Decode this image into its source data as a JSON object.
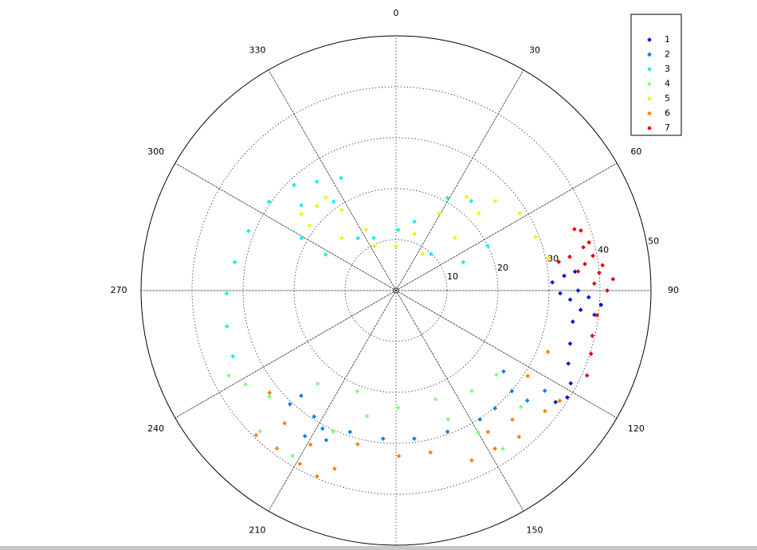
{
  "chart_data": {
    "type": "polar-scatter",
    "theta_zero": "top",
    "theta_direction": "clockwise",
    "rlim": [
      0,
      50
    ],
    "rticks": [
      10,
      20,
      30,
      40,
      50
    ],
    "thetaticks": [
      0,
      30,
      60,
      90,
      120,
      150,
      210,
      240,
      270,
      300,
      330
    ],
    "grid": true,
    "legend": "upper right",
    "series": [
      {
        "name": "1",
        "color": "#0010e0",
        "theta": [
          87,
          85,
          84,
          90,
          92,
          94,
          97,
          96,
          93,
          100,
          107,
          113,
          118,
          122,
          125,
          91
        ],
        "r": [
          30.7,
          33.1,
          35.3,
          35.7,
          37.8,
          40.3,
          39.2,
          36.4,
          34.2,
          35.2,
          35.7,
          36.7,
          38.8,
          39.6,
          38.2,
          32.2
        ]
      },
      {
        "name": "2",
        "color": "#0080ff",
        "theta": [
          127,
          131,
          130,
          124,
          140,
          147,
          160,
          173,
          185,
          198,
          205,
          213,
          222,
          223,
          208,
          212
        ],
        "r": [
          26.4,
          30.1,
          33.6,
          35.2,
          30.2,
          30.2,
          29.5,
          29.3,
          29.2,
          29.2,
          32.4,
          29.5,
          27.8,
          30.5,
          30.7,
          33.7
        ]
      },
      {
        "name": "3",
        "color": "#10f0f0",
        "theta": [
          334,
          324,
          316,
          305,
          292,
          280,
          269,
          258,
          248,
          299,
          297,
          324,
          2,
          44,
          67,
          64,
          40,
          29,
          15,
          337,
          325,
          312
        ],
        "r": [
          24.6,
          26.4,
          28.8,
          30.4,
          31.2,
          32.1,
          33.2,
          33.9,
          34.5,
          21.2,
          15.5,
          12.7,
          11.9,
          9.9,
          14.3,
          20.0,
          22.9,
          20.8,
          14.0,
          11.2,
          21.3,
          25.0
        ]
      },
      {
        "name": "4",
        "color": "#80ff80",
        "theta": [
          243,
          238,
          230,
          224,
          212,
          204,
          193,
          179,
          160,
          143,
          130,
          133,
          146,
          150,
          158,
          201,
          220
        ],
        "r": [
          36.8,
          34.8,
          32.4,
          38.4,
          38.3,
          30.3,
          25.3,
          23.0,
          22.7,
          24.7,
          25.7,
          33.5,
          37.5,
          32.2,
          27.3,
          21.2,
          23.9
        ]
      },
      {
        "name": "5",
        "color": "#f8f000",
        "theta": [
          309,
          317,
          326,
          334,
          0,
          36,
          48,
          47,
          37,
          29,
          18,
          334,
          314,
          307,
          48,
          58,
          69,
          78,
          323
        ],
        "r": [
          23.9,
          22.7,
          19.1,
          13.3,
          8.7,
          8.9,
          15.5,
          22.2,
          23.0,
          17.3,
          11.7,
          9.7,
          14.8,
          21.2,
          26.2,
          28.6,
          29.3,
          30.5,
          22.9
        ]
      },
      {
        "name": "6",
        "color": "#ff8000",
        "theta": [
          224,
          217,
          209,
          203,
          199,
          220,
          209,
          231,
          194,
          179,
          168,
          156,
          148,
          140,
          129,
          112,
          123,
          147,
          138,
          124
        ],
        "r": [
          39.5,
          38.8,
          38.9,
          39.6,
          37.0,
          34.0,
          34.6,
          31.9,
          31.1,
          32.5,
          32.5,
          36.5,
          36.6,
          37.5,
          37.6,
          32.1,
          30.8,
          33.1,
          34.1,
          38.7
        ]
      },
      {
        "name": "7",
        "color": "#e80000",
        "theta": [
          71,
          77,
          80,
          83,
          87,
          85,
          82,
          79,
          80,
          84,
          88,
          90,
          97,
          103,
          108,
          114,
          72,
          76
        ],
        "r": [
          37.0,
          37.7,
          39.2,
          40.8,
          42.6,
          40.0,
          37.4,
          34.7,
          32.4,
          35.9,
          38.9,
          41.4,
          39.7,
          39.5,
          40.2,
          41.0,
          38.1,
          39.0
        ]
      }
    ]
  }
}
